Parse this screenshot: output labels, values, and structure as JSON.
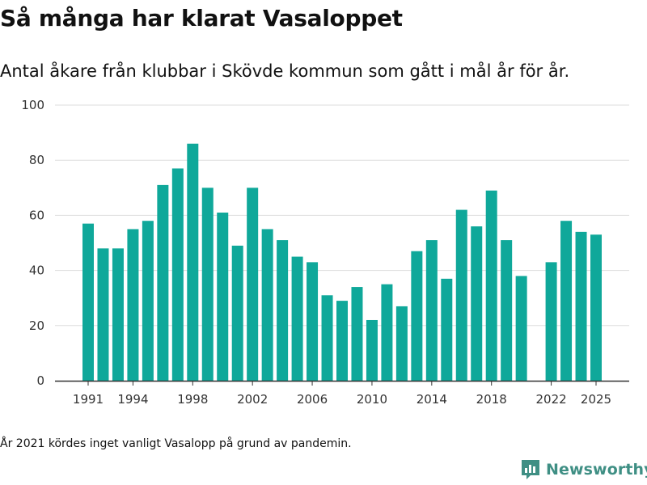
{
  "title": "Så många har klarat Vasaloppet",
  "subtitle": "Antal åkare från klubbar i Skövde kommun som gått i mål år för år.",
  "footnote": "År 2021 kördes inget vanligt Vasalopp på grund av pandemin.",
  "brand": "Newsworthy",
  "colors": {
    "bar": "#0fa89a",
    "grid": "#dddddd",
    "axis": "#333333",
    "brand": "#3f8f84"
  },
  "chart_data": {
    "type": "bar",
    "title": "Så många har klarat Vasaloppet",
    "xlabel": "",
    "ylabel": "",
    "ylim": [
      0,
      100
    ],
    "yticks": [
      0,
      20,
      40,
      60,
      80,
      100
    ],
    "xticks": [
      1991,
      1994,
      1998,
      2002,
      2006,
      2010,
      2014,
      2018,
      2022,
      2025
    ],
    "categories": [
      1991,
      1992,
      1993,
      1994,
      1995,
      1996,
      1997,
      1998,
      1999,
      2000,
      2001,
      2002,
      2003,
      2004,
      2005,
      2006,
      2007,
      2008,
      2009,
      2010,
      2011,
      2012,
      2013,
      2014,
      2015,
      2016,
      2017,
      2018,
      2019,
      2020,
      2022,
      2023,
      2024,
      2025
    ],
    "values": [
      57,
      48,
      48,
      55,
      58,
      71,
      77,
      86,
      70,
      61,
      49,
      70,
      55,
      51,
      45,
      43,
      31,
      29,
      34,
      22,
      35,
      27,
      47,
      51,
      37,
      62,
      56,
      69,
      51,
      38,
      43,
      58,
      54,
      53
    ],
    "grid": true
  }
}
